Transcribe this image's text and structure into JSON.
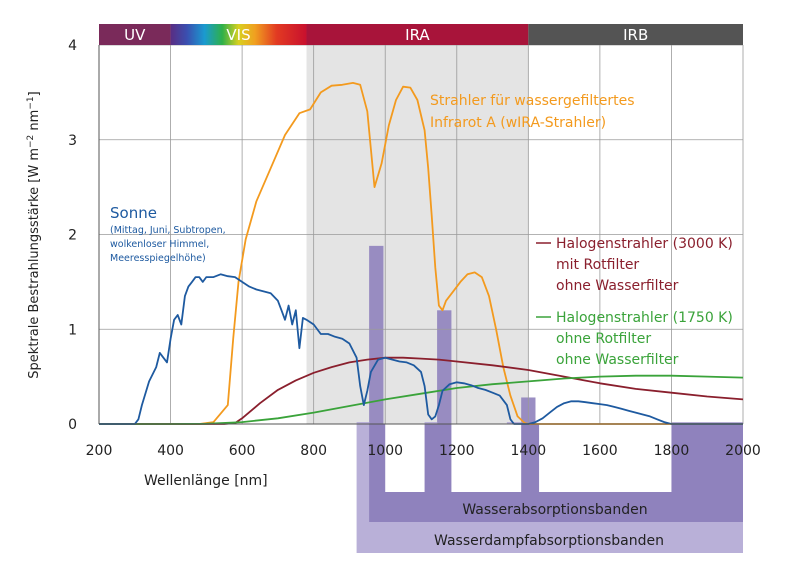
{
  "chart_data": {
    "type": "line",
    "xlabel": "Wellenlänge [nm]",
    "ylabel": "Spektrale Bestrahlungsstärke [W m",
    "ylabel_sup1": "−2",
    "ylabel_mid": " nm",
    "ylabel_sup2": "−1",
    "ylabel_end": "]",
    "xlim": [
      200,
      2000
    ],
    "ylim": [
      0,
      4
    ],
    "xticks": [
      200,
      400,
      600,
      800,
      1000,
      1200,
      1400,
      1600,
      1800,
      2000
    ],
    "yticks": [
      0,
      1,
      2,
      3,
      4
    ],
    "grid": true,
    "bands": [
      {
        "label": "UV",
        "from": 200,
        "to": 400,
        "color": "#7a2a5a"
      },
      {
        "label": "VIS",
        "from": 400,
        "to": 780,
        "color": "spectrum"
      },
      {
        "label": "IRA",
        "from": 780,
        "to": 1400,
        "color": "#a8143a"
      },
      {
        "label": "IRB",
        "from": 1400,
        "to": 2000,
        "color": "#545454"
      }
    ],
    "ira_shading": {
      "from": 780,
      "to": 1400,
      "color": "#e4e4e4"
    },
    "water_absorption_label": "Wasserabsorptionsbanden",
    "water_vapor_absorption_label": "Wasserdampfabsorptionsbanden",
    "water_absorption_bands": [
      [
        955,
        995
      ],
      [
        1145,
        1185
      ],
      [
        1380,
        1420
      ]
    ],
    "water_vapor_bands": [
      [
        920,
        1000
      ],
      [
        1110,
        1180
      ],
      [
        1340,
        1430
      ],
      [
        1800,
        2000
      ]
    ],
    "series": [
      {
        "name": "Strahler für wassergefiltertes",
        "name_line2": "Infrarot A (wIRA-Strahler)",
        "color": "#f39a1e",
        "x": [
          200,
          480,
          520,
          560,
          575,
          590,
          610,
          640,
          680,
          720,
          760,
          790,
          820,
          850,
          880,
          910,
          930,
          950,
          960,
          970,
          990,
          1010,
          1030,
          1050,
          1070,
          1090,
          1110,
          1120,
          1130,
          1140,
          1150,
          1160,
          1170,
          1190,
          1210,
          1230,
          1250,
          1270,
          1290,
          1310,
          1330,
          1350,
          1370,
          1390,
          1400,
          1420,
          2000
        ],
        "y": [
          0,
          0,
          0.02,
          0.2,
          0.9,
          1.5,
          1.95,
          2.35,
          2.7,
          3.05,
          3.28,
          3.32,
          3.5,
          3.57,
          3.58,
          3.6,
          3.58,
          3.3,
          2.9,
          2.5,
          2.75,
          3.15,
          3.42,
          3.56,
          3.55,
          3.42,
          3.1,
          2.7,
          2.2,
          1.65,
          1.25,
          1.2,
          1.3,
          1.4,
          1.5,
          1.58,
          1.6,
          1.55,
          1.35,
          1.0,
          0.6,
          0.3,
          0.08,
          0.01,
          0,
          0,
          0
        ]
      },
      {
        "name": "Halogenstrahler (3000 K)",
        "name_line2": "mit Rotfilter",
        "name_line3": "ohne Wasserfilter",
        "color": "#8a1f2d",
        "x": [
          200,
          550,
          580,
          600,
          650,
          700,
          750,
          800,
          850,
          900,
          950,
          1000,
          1050,
          1100,
          1150,
          1200,
          1300,
          1400,
          1500,
          1600,
          1700,
          1800,
          1900,
          2000
        ],
        "y": [
          0,
          0,
          0.01,
          0.06,
          0.22,
          0.36,
          0.46,
          0.54,
          0.6,
          0.65,
          0.68,
          0.7,
          0.7,
          0.69,
          0.68,
          0.66,
          0.62,
          0.57,
          0.5,
          0.43,
          0.37,
          0.33,
          0.29,
          0.26
        ]
      },
      {
        "name": "Halogenstrahler (1750 K)",
        "name_line2": "ohne Rotfilter",
        "name_line3": "ohne Wasserfilter",
        "color": "#3aa33a",
        "x": [
          200,
          400,
          500,
          600,
          700,
          800,
          900,
          1000,
          1100,
          1200,
          1300,
          1400,
          1500,
          1600,
          1700,
          1800,
          1900,
          2000
        ],
        "y": [
          0,
          0,
          0.002,
          0.02,
          0.06,
          0.12,
          0.19,
          0.26,
          0.32,
          0.38,
          0.42,
          0.45,
          0.48,
          0.5,
          0.51,
          0.51,
          0.5,
          0.49
        ]
      },
      {
        "name": "Sonne",
        "name_line2": "(Mittag, Juni, Subtropen,",
        "name_line3": "wolkenloser Himmel,",
        "name_line4": "Meeresspiegelhöhe)",
        "color": "#1e5aa0",
        "x": [
          200,
          300,
          310,
          320,
          340,
          360,
          370,
          380,
          390,
          400,
          410,
          420,
          430,
          440,
          450,
          460,
          470,
          480,
          490,
          500,
          520,
          540,
          560,
          580,
          600,
          620,
          640,
          660,
          680,
          700,
          710,
          720,
          730,
          740,
          750,
          760,
          770,
          780,
          800,
          820,
          840,
          860,
          880,
          900,
          920,
          930,
          940,
          950,
          960,
          980,
          1000,
          1020,
          1040,
          1060,
          1080,
          1100,
          1110,
          1120,
          1130,
          1140,
          1150,
          1160,
          1180,
          1200,
          1220,
          1240,
          1260,
          1280,
          1300,
          1320,
          1340,
          1350,
          1360,
          1380,
          1400,
          1420,
          1440,
          1460,
          1480,
          1500,
          1520,
          1540,
          1560,
          1580,
          1600,
          1620,
          1640,
          1660,
          1680,
          1700,
          1720,
          1740,
          1760,
          1780,
          1800,
          1820,
          1840,
          1860,
          1880,
          1900,
          1950,
          2000
        ],
        "y": [
          0,
          0,
          0.05,
          0.2,
          0.45,
          0.6,
          0.75,
          0.7,
          0.65,
          0.9,
          1.1,
          1.15,
          1.05,
          1.35,
          1.45,
          1.5,
          1.55,
          1.55,
          1.5,
          1.55,
          1.55,
          1.58,
          1.56,
          1.55,
          1.5,
          1.45,
          1.42,
          1.4,
          1.38,
          1.3,
          1.2,
          1.1,
          1.25,
          1.05,
          1.2,
          0.8,
          1.12,
          1.1,
          1.05,
          0.95,
          0.95,
          0.92,
          0.9,
          0.85,
          0.7,
          0.4,
          0.2,
          0.35,
          0.55,
          0.68,
          0.7,
          0.68,
          0.66,
          0.65,
          0.62,
          0.55,
          0.4,
          0.1,
          0.05,
          0.08,
          0.2,
          0.35,
          0.42,
          0.44,
          0.43,
          0.41,
          0.38,
          0.36,
          0.33,
          0.3,
          0.2,
          0.05,
          0,
          0,
          0,
          0.02,
          0.06,
          0.12,
          0.18,
          0.22,
          0.24,
          0.24,
          0.23,
          0.22,
          0.21,
          0.2,
          0.18,
          0.16,
          0.14,
          0.12,
          0.1,
          0.08,
          0.05,
          0.02,
          0,
          0,
          0,
          0,
          0,
          0,
          0,
          0
        ]
      }
    ]
  }
}
